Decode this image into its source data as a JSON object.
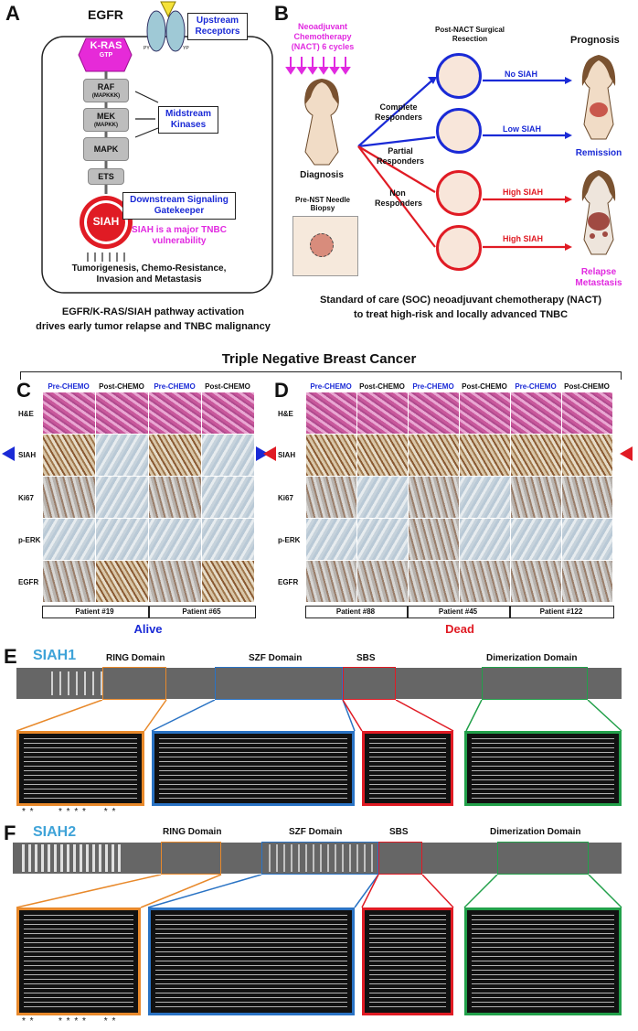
{
  "panelA": {
    "letter": "A",
    "egfr": "EGFR",
    "upstream": "Upstream Receptors",
    "kras": "K-RAS",
    "gtp": "GTP",
    "py_left": "PY",
    "py_right": "YP",
    "kinases": [
      {
        "name": "RAF",
        "sub": "(MAPKKK)"
      },
      {
        "name": "MEK",
        "sub": "(MAPKK)"
      },
      {
        "name": "MAPK",
        "sub": ""
      },
      {
        "name": "ETS",
        "sub": ""
      }
    ],
    "midstream": "Midstream Kinases",
    "siah": "SIAH",
    "downstream": "Downstream Signaling Gatekeeper",
    "vulnerability": "SIAH is a major TNBC vulnerability",
    "outcomes": "Tumorigenesis, Chemo-Resistance, Invasion and Metastasis",
    "caption_line1": "EGFR/K-RAS/SIAH pathway activation",
    "caption_line2": "drives early tumor relapse and TNBC malignancy"
  },
  "panelB": {
    "letter": "B",
    "nact": "Neoadjuvant Chemotherapy (NACT) 6 cycles",
    "diagnosis": "Diagnosis",
    "biopsy": "Pre-NST Needle Biopsy",
    "resection": "Post-NACT Surgical Resection",
    "prognosis": "Prognosis",
    "complete": "Complete Responders",
    "partial": "Partial Responders",
    "non": "Non Responders",
    "no_siah": "No SIAH",
    "low_siah": "Low SIAH",
    "high_siah_1": "High SIAH",
    "high_siah_2": "High SIAH",
    "remission": "Remission",
    "relapse": "Relapse Metastasis",
    "caption_line1": "Standard of care (SOC) neoadjuvant chemotherapy (NACT)",
    "caption_line2": "to treat high-risk and locally advanced TNBC"
  },
  "tnbc_title": "Triple Negative Breast Cancer",
  "panelC": {
    "letter": "C",
    "cols": [
      "Pre-CHEMO",
      "Post-CHEMO",
      "Pre-CHEMO",
      "Post-CHEMO"
    ],
    "rows": [
      "H&E",
      "SIAH",
      "Ki67",
      "p-ERK",
      "EGFR"
    ],
    "patients": [
      "Patient #19",
      "Patient #65"
    ],
    "status": "Alive"
  },
  "panelD": {
    "letter": "D",
    "cols": [
      "Pre-CHEMO",
      "Post-CHEMO",
      "Pre-CHEMO",
      "Post-CHEMO",
      "Pre-CHEMO",
      "Post-CHEMO"
    ],
    "rows": [
      "H&E",
      "SIAH",
      "Ki67",
      "p-ERK",
      "EGFR"
    ],
    "patients": [
      "Patient #88",
      "Patient #45",
      "Patient #122"
    ],
    "status": "Dead"
  },
  "panelE": {
    "letter": "E",
    "protein": "SIAH1",
    "domains": [
      "RING Domain",
      "SZF Domain",
      "SBS",
      "Dimerization Domain"
    ],
    "stars": "* *       * * * *     * *"
  },
  "panelF": {
    "letter": "F",
    "protein": "SIAH2",
    "domains": [
      "RING Domain",
      "SZF Domain",
      "SBS",
      "Dimerization Domain"
    ],
    "stars": "* *       * * * *     * *"
  },
  "colors": {
    "blue": "#1a2ad6",
    "magenta": "#e12ae0",
    "red": "#e01b24",
    "orange": "#e8892b",
    "domain_blue": "#2a73c4",
    "green": "#22a04a",
    "cyan_title": "#3fa3d8"
  }
}
